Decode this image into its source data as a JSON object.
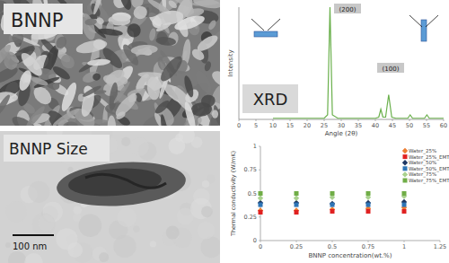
{
  "panels": {
    "sem_label": "BNNP",
    "tem_label": "BNNP Size",
    "scale_bar": "100 nm"
  },
  "chart_data": [
    {
      "type": "line",
      "x_label": "Angle (2θ)",
      "y_label": "Intensity",
      "x": [
        10,
        25,
        26,
        26.7,
        27.4,
        29,
        40,
        41,
        41.6,
        42.2,
        43,
        43.9,
        44.8,
        46,
        49.5,
        50.2,
        50.9,
        54.4,
        55.1,
        55.8,
        60
      ],
      "values": [
        1,
        1,
        4,
        100,
        4,
        1,
        1,
        2,
        9,
        2,
        2,
        22,
        2,
        1,
        1,
        4,
        1,
        1,
        4,
        1,
        1
      ],
      "color": "#6ab04c",
      "xlim": [
        0,
        60
      ],
      "ylim": [
        0,
        100
      ],
      "xticks": [
        0,
        5,
        10,
        15,
        20,
        25,
        30,
        35,
        40,
        45,
        50,
        55,
        60
      ],
      "tick_labels": "x",
      "annotations": [
        "(200)",
        "(100)",
        "XRD"
      ]
    },
    {
      "type": "scatter",
      "x_label": "BNNP concentration(wt.%)",
      "y_label": "Thermal conductivity (W/mK)",
      "x": [
        0,
        0.25,
        0.5,
        0.75,
        1
      ],
      "series": [
        {
          "name": "Water_25%",
          "color": "#ed7d31",
          "marker": "diamond",
          "values": [
            0.32,
            0.32,
            0.33,
            0.34,
            0.35
          ]
        },
        {
          "name": "Water_25%_EMT",
          "color": "#e02020",
          "marker": "square",
          "values": [
            0.3,
            0.3,
            0.31,
            0.31,
            0.31
          ]
        },
        {
          "name": "Water_50%",
          "color": "#1f3864",
          "marker": "diamond",
          "values": [
            0.4,
            0.4,
            0.39,
            0.4,
            0.41
          ]
        },
        {
          "name": "Water_50%_EMT",
          "color": "#2e75b6",
          "marker": "square",
          "values": [
            0.38,
            0.38,
            0.38,
            0.38,
            0.38
          ]
        },
        {
          "name": "Water_75%",
          "color": "#a9d18e",
          "marker": "diamond",
          "values": [
            0.45,
            0.45,
            0.46,
            0.46,
            0.47
          ]
        },
        {
          "name": "Water_75%_EMT",
          "color": "#70ad47",
          "marker": "square",
          "values": [
            0.5,
            0.5,
            0.5,
            0.5,
            0.5
          ]
        }
      ],
      "xlim": [
        0,
        1.25
      ],
      "ylim": [
        0,
        1
      ],
      "xticks": [
        0,
        0.25,
        0.5,
        0.75,
        1,
        1.25
      ],
      "yticks": [
        0,
        0.25,
        0.5,
        0.75,
        1
      ],
      "legend": "right",
      "grid": false
    }
  ]
}
